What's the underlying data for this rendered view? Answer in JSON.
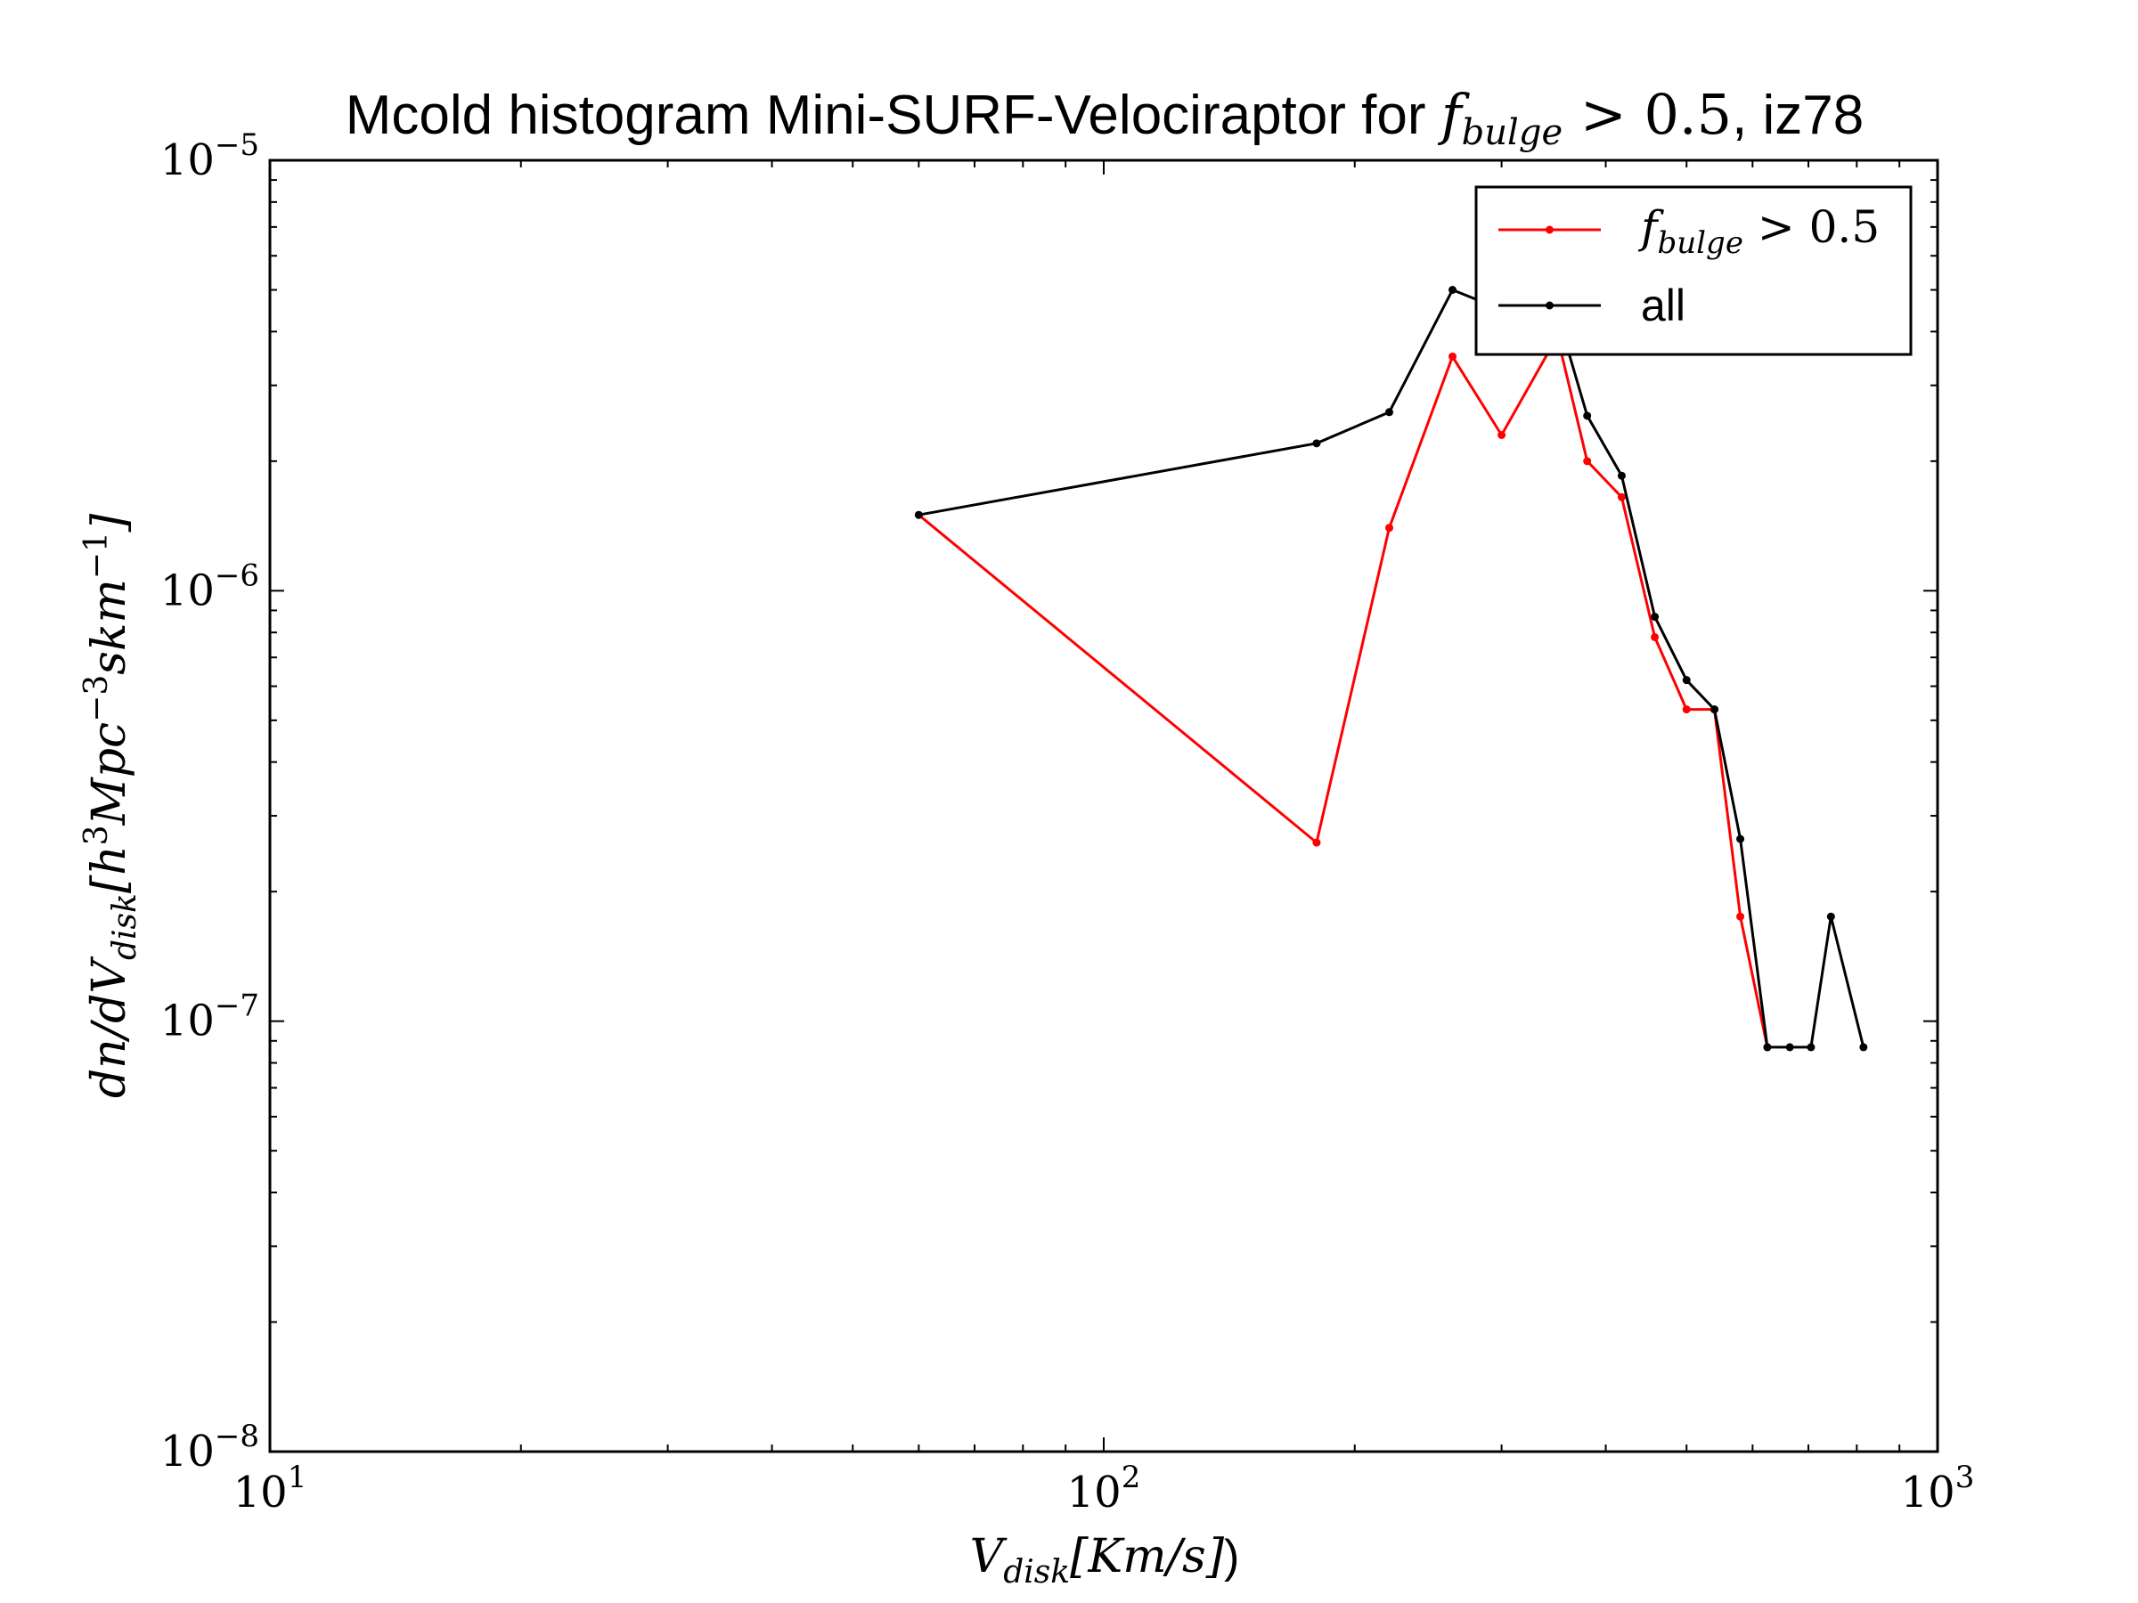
{
  "chart_data": {
    "type": "line",
    "title": {
      "prefix": "Mcold histogram Mini-SURF-Velociraptor for ",
      "math_base": "f",
      "math_sub": "bulge",
      "math_rest": " > 0.5",
      "suffix": ", iz78"
    },
    "xlabel": {
      "base": "V",
      "sub": "disk",
      "rest": "[Km/s]",
      "suffix": ")"
    },
    "ylabel": {
      "part1": "dn/dV",
      "sub": "disk",
      "part2": "[h",
      "sup1": "3",
      "part3": "Mpc",
      "sup2": "−3",
      "part4": "skm",
      "sup3": "−1",
      "part5": "]"
    },
    "x_scale": "log",
    "y_scale": "log",
    "xlim": [
      10,
      1000
    ],
    "ylim": [
      1e-08,
      1e-05
    ],
    "x_ticks": [
      {
        "value": 10,
        "base": "10",
        "exp": "1"
      },
      {
        "value": 100,
        "base": "10",
        "exp": "2"
      },
      {
        "value": 1000,
        "base": "10",
        "exp": "3"
      }
    ],
    "y_ticks": [
      {
        "value": 1e-08,
        "base": "10",
        "exp": "−8"
      },
      {
        "value": 1e-07,
        "base": "10",
        "exp": "−7"
      },
      {
        "value": 1e-06,
        "base": "10",
        "exp": "−6"
      },
      {
        "value": 1e-05,
        "base": "10",
        "exp": "−5"
      }
    ],
    "grid": false,
    "legend_position": "top-right",
    "series": [
      {
        "name": "f_bulge > 0.5",
        "legend_label": {
          "base": "f",
          "sub": "bulge",
          "rest": " > 0.5"
        },
        "color": "#ff0000",
        "x": [
          60,
          180,
          220,
          262,
          300,
          350,
          380,
          418,
          458,
          500,
          540,
          580,
          625
        ],
        "y": [
          1.5e-06,
          2.6e-07,
          1.4e-06,
          3.5e-06,
          2.3e-06,
          3.9e-06,
          2e-06,
          1.65e-06,
          7.8e-07,
          5.3e-07,
          5.3e-07,
          1.75e-07,
          8.7e-08
        ]
      },
      {
        "name": "all",
        "legend_label": {
          "base": "all",
          "sub": "",
          "rest": ""
        },
        "color": "#000000",
        "x": [
          60,
          180,
          220,
          262,
          300,
          350,
          380,
          418,
          458,
          500,
          540,
          580,
          625,
          665,
          705,
          745,
          815
        ],
        "y": [
          1.5e-06,
          2.2e-06,
          2.6e-06,
          5e-06,
          4.5e-06,
          4.4e-06,
          2.55e-06,
          1.85e-06,
          8.7e-07,
          6.2e-07,
          5.3e-07,
          2.65e-07,
          8.7e-08,
          8.7e-08,
          8.7e-08,
          1.75e-07,
          8.7e-08
        ]
      }
    ]
  }
}
